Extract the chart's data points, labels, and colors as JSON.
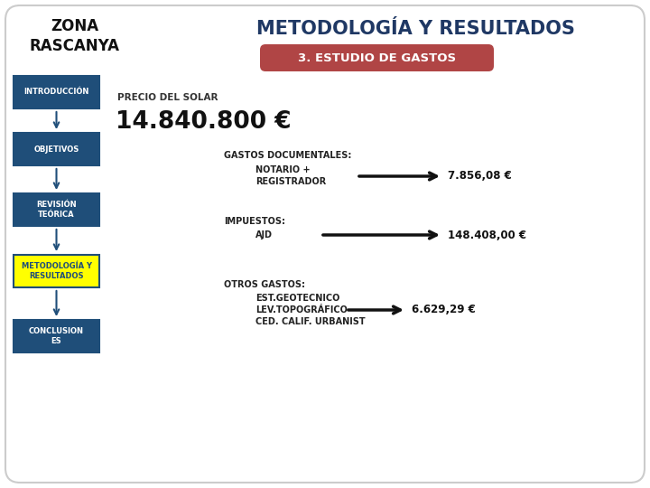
{
  "title": "METODOLOGÍA Y RESULTADOS",
  "title_color": "#1F3864",
  "bg_color": "#FFFFFF",
  "border_color": "#CCCCCC",
  "zona_text": "ZONA\nRASCANYA",
  "subtitle_box_text": "3. ESTUDIO DE GASTOS",
  "subtitle_box_color": "#B04545",
  "subtitle_text_color": "#FFFFFF",
  "precio_label": "PRECIO DEL SOLAR",
  "precio_value": "14.840.800 €",
  "nav_boxes": [
    {
      "label": "INTRODUCCIÓN",
      "bg": "#1F4E79",
      "fg": "#FFFFFF",
      "border": "#1F4E79"
    },
    {
      "label": "OBJETIVOS",
      "bg": "#1F4E79",
      "fg": "#FFFFFF",
      "border": "#1F4E79"
    },
    {
      "label": "REVISIÓN\nTEÓRICA",
      "bg": "#1F4E79",
      "fg": "#FFFFFF",
      "border": "#1F4E79"
    },
    {
      "label": "METODOLOGÍA Y\nRESULTADOS",
      "bg": "#FFFF00",
      "fg": "#1F4E79",
      "border": "#1F4E79"
    },
    {
      "label": "CONCLUSION\nES",
      "bg": "#1F4E79",
      "fg": "#FFFFFF",
      "border": "#1F4E79"
    }
  ],
  "gastos_doc_header": "GASTOS DOCUMENTALES:",
  "gastos_doc_items": [
    "NOTARIO +",
    "REGISTRADOR"
  ],
  "gastos_doc_value": "7.856,08 €",
  "impuestos_header": "IMPUESTOS:",
  "impuestos_item": "AJD",
  "impuestos_value": "148.408,00 €",
  "otros_header": "OTROS GASTOS:",
  "otros_items": [
    "EST.GEOTECNICO",
    "LEV.TOPOGRÁFICO",
    "CED. CALIF. URBANIST"
  ],
  "otros_value": "6.629,29 €",
  "fig_width": 7.2,
  "fig_height": 5.4,
  "dpi": 100
}
